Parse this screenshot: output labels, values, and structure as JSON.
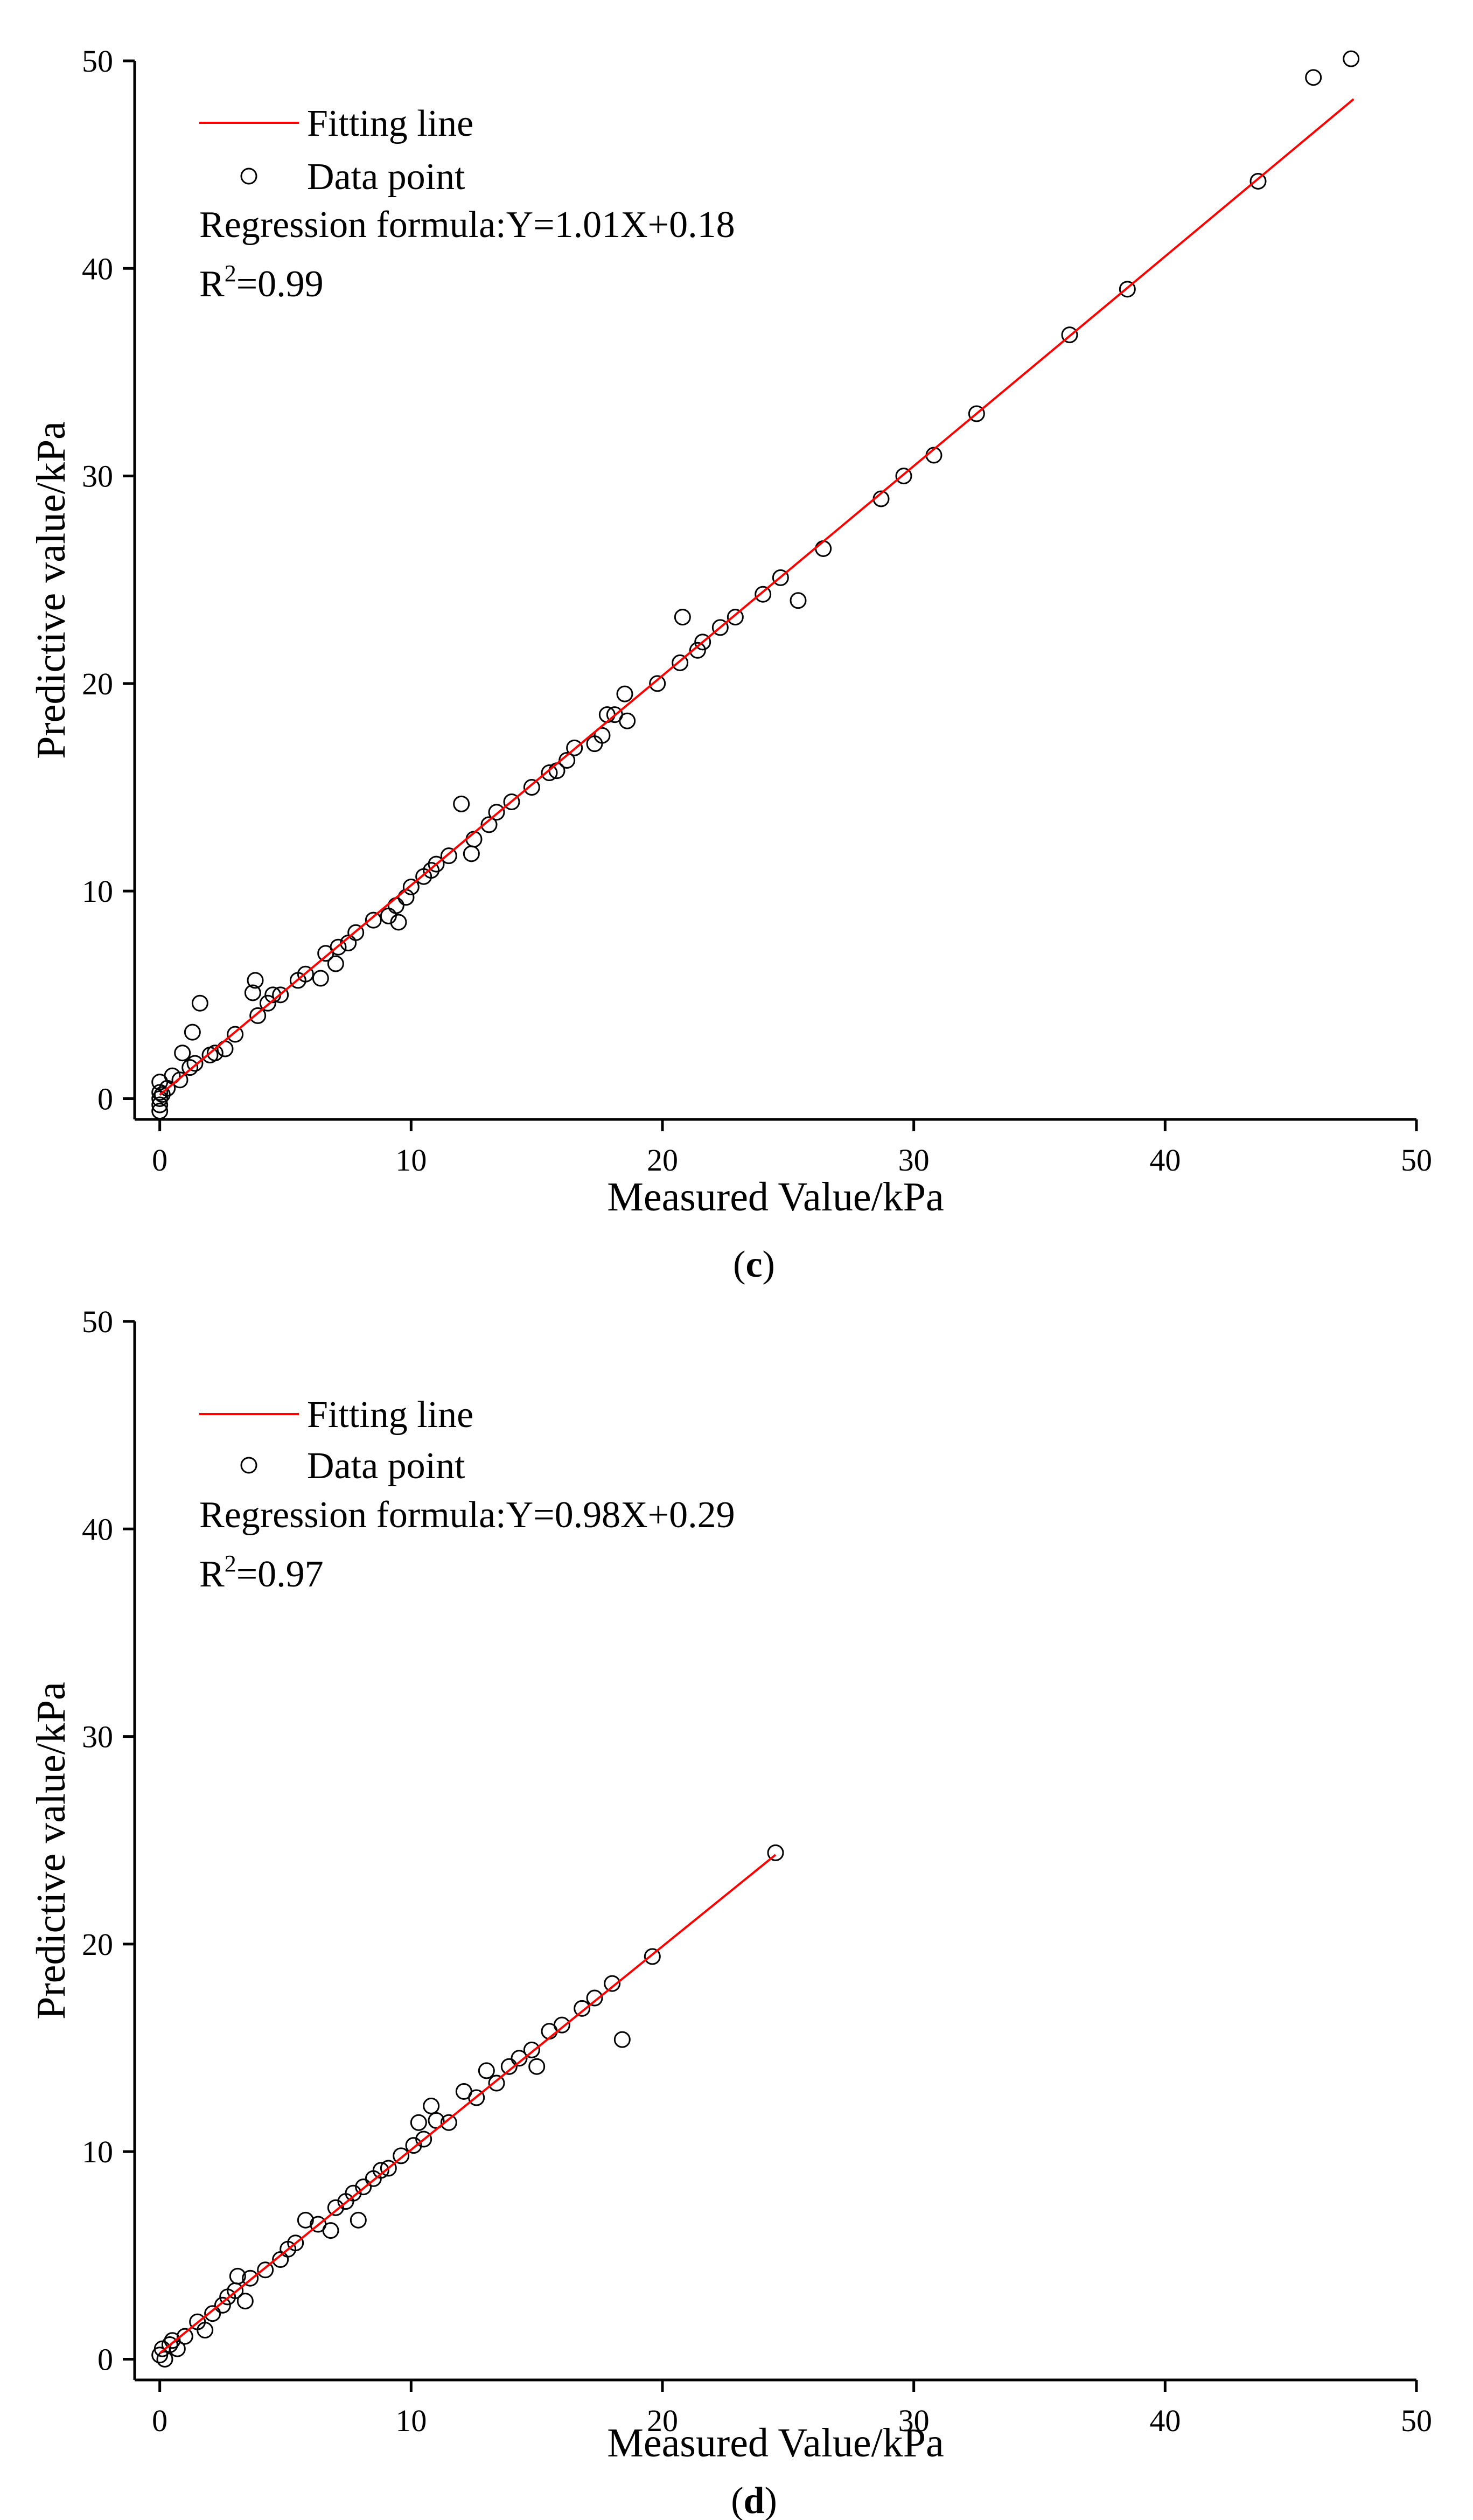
{
  "colors": {
    "fit_line": "#ff0000",
    "points": "#000000",
    "axes": "#000000"
  },
  "chart_data": [
    {
      "type": "scatter",
      "panel_label": "c",
      "xlabel": "Measured Value/kPa",
      "ylabel": "Predictive value/kPa",
      "xlim": [
        -1,
        50
      ],
      "ylim": [
        -1,
        50
      ],
      "xticks": [
        0,
        10,
        20,
        30,
        40,
        50
      ],
      "yticks": [
        0,
        10,
        20,
        30,
        40,
        50
      ],
      "grid": false,
      "legend_position": "top-left",
      "legend": {
        "line_label": "Fitting line",
        "point_label": "Data point"
      },
      "regression_text": "Regression formula:Y=1.01X+0.18",
      "r2_prefix": "R",
      "r2_sup": "2",
      "r2_value": "=0.99",
      "fit": {
        "slope": 1.01,
        "intercept": 0.18,
        "x_range": [
          0,
          47.5
        ]
      },
      "points": [
        [
          0,
          -0.6
        ],
        [
          0,
          -0.3
        ],
        [
          0,
          0
        ],
        [
          0,
          0.3
        ],
        [
          0,
          0.8
        ],
        [
          0.1,
          0.2
        ],
        [
          0.3,
          0.5
        ],
        [
          0.5,
          1.1
        ],
        [
          0.8,
          0.9
        ],
        [
          0.9,
          2.2
        ],
        [
          1.2,
          1.5
        ],
        [
          1.3,
          3.2
        ],
        [
          1.4,
          1.7
        ],
        [
          1.6,
          4.6
        ],
        [
          2,
          2.1
        ],
        [
          2.2,
          2.2
        ],
        [
          2.6,
          2.4
        ],
        [
          3,
          3.1
        ],
        [
          3.7,
          5.1
        ],
        [
          3.8,
          5.7
        ],
        [
          3.9,
          4
        ],
        [
          4.3,
          4.6
        ],
        [
          4.5,
          5
        ],
        [
          4.8,
          5
        ],
        [
          5.5,
          5.7
        ],
        [
          5.8,
          6
        ],
        [
          6.4,
          5.8
        ],
        [
          6.6,
          7
        ],
        [
          7,
          6.5
        ],
        [
          7.1,
          7.3
        ],
        [
          7.5,
          7.5
        ],
        [
          7.8,
          8
        ],
        [
          8.5,
          8.6
        ],
        [
          9.1,
          8.8
        ],
        [
          9.4,
          9.3
        ],
        [
          9.5,
          8.5
        ],
        [
          9.8,
          9.7
        ],
        [
          10,
          10.2
        ],
        [
          10.5,
          10.7
        ],
        [
          10.8,
          11
        ],
        [
          11,
          11.3
        ],
        [
          11.5,
          11.7
        ],
        [
          12,
          14.2
        ],
        [
          12.4,
          11.8
        ],
        [
          12.5,
          12.5
        ],
        [
          13.1,
          13.2
        ],
        [
          13.4,
          13.8
        ],
        [
          14,
          14.3
        ],
        [
          14.8,
          15
        ],
        [
          15.5,
          15.7
        ],
        [
          15.8,
          15.8
        ],
        [
          16.2,
          16.3
        ],
        [
          16.5,
          16.9
        ],
        [
          17.3,
          17.1
        ],
        [
          17.6,
          17.5
        ],
        [
          17.8,
          18.5
        ],
        [
          18.1,
          18.5
        ],
        [
          18.5,
          19.5
        ],
        [
          18.6,
          18.2
        ],
        [
          19.8,
          20
        ],
        [
          20.7,
          21
        ],
        [
          20.8,
          23.2
        ],
        [
          21.4,
          21.6
        ],
        [
          21.6,
          22
        ],
        [
          22.3,
          22.7
        ],
        [
          22.9,
          23.2
        ],
        [
          24,
          24.3
        ],
        [
          24.7,
          25.1
        ],
        [
          25.4,
          24
        ],
        [
          26.4,
          26.5
        ],
        [
          28.7,
          28.9
        ],
        [
          29.6,
          30
        ],
        [
          30.8,
          31
        ],
        [
          32.5,
          33
        ],
        [
          36.2,
          36.8
        ],
        [
          38.5,
          39
        ],
        [
          43.7,
          44.2
        ],
        [
          45.9,
          49.2
        ],
        [
          47.4,
          50.1
        ]
      ]
    },
    {
      "type": "scatter",
      "panel_label": "d",
      "xlabel": "Measured Value/kPa",
      "ylabel": "Predictive value/kPa",
      "xlim": [
        -1,
        50
      ],
      "ylim": [
        -1,
        50
      ],
      "xticks": [
        0,
        10,
        20,
        30,
        40,
        50
      ],
      "yticks": [
        0,
        10,
        20,
        30,
        40,
        50
      ],
      "grid": false,
      "legend_position": "top-left",
      "legend": {
        "line_label": "Fitting line",
        "point_label": "Data point"
      },
      "regression_text": "Regression formula:Y=0.98X+0.29",
      "r2_prefix": "R",
      "r2_sup": "2",
      "r2_value": "=0.97",
      "fit": {
        "slope": 0.98,
        "intercept": 0.29,
        "x_range": [
          0,
          24.5
        ]
      },
      "points": [
        [
          0,
          0.2
        ],
        [
          0.1,
          0.5
        ],
        [
          0.2,
          0
        ],
        [
          0.4,
          0.7
        ],
        [
          0.5,
          0.9
        ],
        [
          0.7,
          0.5
        ],
        [
          1,
          1.1
        ],
        [
          1.5,
          1.8
        ],
        [
          1.8,
          1.4
        ],
        [
          2.1,
          2.2
        ],
        [
          2.5,
          2.6
        ],
        [
          2.7,
          3
        ],
        [
          3,
          3.3
        ],
        [
          3.1,
          4
        ],
        [
          3.4,
          2.8
        ],
        [
          3.6,
          3.9
        ],
        [
          4.2,
          4.3
        ],
        [
          4.8,
          4.8
        ],
        [
          5.1,
          5.3
        ],
        [
          5.4,
          5.6
        ],
        [
          5.8,
          6.7
        ],
        [
          6.3,
          6.5
        ],
        [
          6.8,
          6.2
        ],
        [
          7,
          7.3
        ],
        [
          7.4,
          7.6
        ],
        [
          7.7,
          8
        ],
        [
          7.9,
          6.7
        ],
        [
          8.1,
          8.3
        ],
        [
          8.5,
          8.7
        ],
        [
          8.8,
          9.1
        ],
        [
          9.1,
          9.2
        ],
        [
          9.6,
          9.8
        ],
        [
          10.1,
          10.3
        ],
        [
          10.3,
          11.4
        ],
        [
          10.5,
          10.6
        ],
        [
          10.8,
          12.2
        ],
        [
          11,
          11.5
        ],
        [
          11.5,
          11.4
        ],
        [
          12.1,
          12.9
        ],
        [
          12.6,
          12.6
        ],
        [
          13,
          13.9
        ],
        [
          13.4,
          13.3
        ],
        [
          13.9,
          14.1
        ],
        [
          14.3,
          14.5
        ],
        [
          14.8,
          14.9
        ],
        [
          15,
          14.1
        ],
        [
          15.5,
          15.8
        ],
        [
          16,
          16.1
        ],
        [
          16.8,
          16.9
        ],
        [
          17.3,
          17.4
        ],
        [
          18,
          18.1
        ],
        [
          18.4,
          15.4
        ],
        [
          19.6,
          19.4
        ],
        [
          24.5,
          24.4
        ]
      ]
    }
  ]
}
